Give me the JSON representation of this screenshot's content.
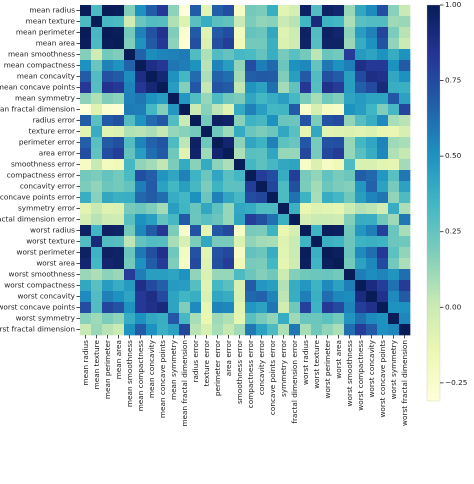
{
  "chart_data": {
    "type": "heatmap",
    "title": "",
    "xlabel": "",
    "ylabel": "",
    "labels": [
      "mean radius",
      "mean texture",
      "mean perimeter",
      "mean area",
      "mean smoothness",
      "mean compactness",
      "mean concavity",
      "mean concave points",
      "mean symmetry",
      "mean fractal dimension",
      "radius error",
      "texture error",
      "perimeter error",
      "area error",
      "smoothness error",
      "compactness error",
      "concavity error",
      "concave points error",
      "symmetry error",
      "fractal dimension error",
      "worst radius",
      "worst texture",
      "worst perimeter",
      "worst area",
      "worst smoothness",
      "worst compactness",
      "worst concavity",
      "worst concave points",
      "worst symmetry",
      "worst fractal dimension"
    ],
    "matrix": [
      [
        1.0,
        0.32,
        1.0,
        0.99,
        0.17,
        0.51,
        0.68,
        0.82,
        0.15,
        -0.31,
        0.68,
        -0.1,
        0.67,
        0.74,
        -0.22,
        0.21,
        0.19,
        0.38,
        -0.1,
        -0.04,
        0.97,
        0.3,
        0.97,
        0.94,
        0.12,
        0.41,
        0.53,
        0.74,
        0.16,
        0.01
      ],
      [
        0.32,
        1.0,
        0.33,
        0.32,
        -0.02,
        0.24,
        0.3,
        0.29,
        0.07,
        -0.08,
        0.28,
        0.39,
        0.28,
        0.26,
        0.01,
        0.19,
        0.14,
        0.16,
        0.01,
        0.05,
        0.35,
        0.91,
        0.36,
        0.34,
        0.08,
        0.28,
        0.3,
        0.3,
        0.11,
        0.12
      ],
      [
        1.0,
        0.33,
        1.0,
        0.99,
        0.21,
        0.56,
        0.72,
        0.85,
        0.18,
        -0.26,
        0.69,
        -0.09,
        0.69,
        0.74,
        -0.2,
        0.25,
        0.23,
        0.41,
        -0.08,
        -0.01,
        0.97,
        0.3,
        0.97,
        0.94,
        0.15,
        0.46,
        0.56,
        0.77,
        0.19,
        0.05
      ],
      [
        0.99,
        0.32,
        0.99,
        1.0,
        0.18,
        0.5,
        0.69,
        0.82,
        0.15,
        -0.28,
        0.73,
        -0.07,
        0.73,
        0.8,
        -0.17,
        0.21,
        0.21,
        0.37,
        -0.07,
        -0.02,
        0.96,
        0.29,
        0.96,
        0.96,
        0.12,
        0.39,
        0.51,
        0.72,
        0.14,
        0.0
      ],
      [
        0.17,
        -0.02,
        0.21,
        0.18,
        1.0,
        0.66,
        0.52,
        0.55,
        0.56,
        0.58,
        0.3,
        0.07,
        0.3,
        0.25,
        0.33,
        0.32,
        0.25,
        0.38,
        0.2,
        0.28,
        0.21,
        0.04,
        0.24,
        0.21,
        0.81,
        0.47,
        0.43,
        0.5,
        0.39,
        0.5
      ],
      [
        0.51,
        0.24,
        0.56,
        0.5,
        0.66,
        1.0,
        0.88,
        0.83,
        0.6,
        0.57,
        0.5,
        0.05,
        0.55,
        0.46,
        0.14,
        0.74,
        0.57,
        0.64,
        0.23,
        0.51,
        0.54,
        0.25,
        0.59,
        0.51,
        0.57,
        0.87,
        0.82,
        0.82,
        0.51,
        0.69
      ],
      [
        0.68,
        0.3,
        0.72,
        0.69,
        0.52,
        0.88,
        1.0,
        0.92,
        0.5,
        0.34,
        0.63,
        0.08,
        0.66,
        0.62,
        0.1,
        0.67,
        0.69,
        0.68,
        0.18,
        0.45,
        0.69,
        0.3,
        0.73,
        0.68,
        0.45,
        0.75,
        0.88,
        0.86,
        0.41,
        0.51
      ],
      [
        0.82,
        0.29,
        0.85,
        0.82,
        0.55,
        0.83,
        0.92,
        1.0,
        0.46,
        0.17,
        0.7,
        0.02,
        0.71,
        0.69,
        0.03,
        0.49,
        0.44,
        0.62,
        0.1,
        0.26,
        0.83,
        0.29,
        0.86,
        0.81,
        0.45,
        0.67,
        0.75,
        0.91,
        0.38,
        0.37
      ],
      [
        0.15,
        0.07,
        0.18,
        0.15,
        0.56,
        0.6,
        0.5,
        0.46,
        1.0,
        0.48,
        0.3,
        0.13,
        0.31,
        0.22,
        0.19,
        0.42,
        0.34,
        0.39,
        0.45,
        0.33,
        0.19,
        0.09,
        0.22,
        0.18,
        0.43,
        0.47,
        0.43,
        0.43,
        0.7,
        0.44
      ],
      [
        -0.31,
        -0.08,
        -0.26,
        -0.28,
        0.58,
        0.57,
        0.34,
        0.17,
        0.48,
        1.0,
        0.0,
        0.16,
        0.04,
        -0.09,
        0.4,
        0.56,
        0.45,
        0.34,
        0.35,
        0.69,
        -0.25,
        -0.05,
        -0.21,
        -0.23,
        0.5,
        0.46,
        0.35,
        0.18,
        0.33,
        0.77
      ],
      [
        0.68,
        0.28,
        0.69,
        0.73,
        0.3,
        0.5,
        0.63,
        0.7,
        0.3,
        0.0,
        1.0,
        0.21,
        0.97,
        0.95,
        0.16,
        0.36,
        0.33,
        0.51,
        0.24,
        0.23,
        0.72,
        0.19,
        0.72,
        0.75,
        0.14,
        0.29,
        0.38,
        0.53,
        0.09,
        0.05
      ],
      [
        -0.1,
        0.39,
        -0.09,
        -0.07,
        0.07,
        0.05,
        0.08,
        0.02,
        0.13,
        0.16,
        0.21,
        1.0,
        0.22,
        0.11,
        0.4,
        0.23,
        0.19,
        0.23,
        0.41,
        0.28,
        -0.11,
        0.41,
        -0.1,
        -0.08,
        -0.07,
        -0.09,
        -0.07,
        -0.12,
        -0.13,
        -0.05
      ],
      [
        0.67,
        0.28,
        0.69,
        0.73,
        0.3,
        0.55,
        0.66,
        0.71,
        0.31,
        0.04,
        0.97,
        0.22,
        1.0,
        0.94,
        0.15,
        0.42,
        0.36,
        0.56,
        0.27,
        0.24,
        0.7,
        0.2,
        0.72,
        0.73,
        0.13,
        0.34,
        0.42,
        0.55,
        0.11,
        0.09
      ],
      [
        0.74,
        0.26,
        0.74,
        0.8,
        0.25,
        0.46,
        0.62,
        0.69,
        0.22,
        -0.09,
        0.95,
        0.11,
        0.94,
        1.0,
        0.08,
        0.28,
        0.27,
        0.42,
        0.13,
        0.13,
        0.76,
        0.2,
        0.76,
        0.81,
        0.13,
        0.28,
        0.39,
        0.54,
        0.07,
        0.02
      ],
      [
        -0.22,
        0.01,
        -0.2,
        -0.17,
        0.33,
        0.14,
        0.1,
        0.03,
        0.19,
        0.4,
        0.16,
        0.4,
        0.15,
        0.08,
        1.0,
        0.34,
        0.27,
        0.33,
        0.41,
        0.43,
        -0.23,
        -0.07,
        -0.22,
        -0.18,
        0.31,
        -0.06,
        -0.06,
        -0.1,
        -0.11,
        0.1
      ],
      [
        0.21,
        0.19,
        0.25,
        0.21,
        0.32,
        0.74,
        0.67,
        0.49,
        0.42,
        0.56,
        0.36,
        0.23,
        0.42,
        0.28,
        0.34,
        1.0,
        0.8,
        0.74,
        0.39,
        0.8,
        0.2,
        0.14,
        0.26,
        0.2,
        0.23,
        0.68,
        0.64,
        0.48,
        0.28,
        0.59
      ],
      [
        0.19,
        0.14,
        0.23,
        0.21,
        0.25,
        0.57,
        0.69,
        0.44,
        0.34,
        0.45,
        0.33,
        0.19,
        0.36,
        0.27,
        0.27,
        0.8,
        1.0,
        0.77,
        0.31,
        0.73,
        0.19,
        0.1,
        0.23,
        0.19,
        0.17,
        0.48,
        0.66,
        0.44,
        0.2,
        0.44
      ],
      [
        0.38,
        0.16,
        0.41,
        0.37,
        0.38,
        0.64,
        0.68,
        0.62,
        0.39,
        0.34,
        0.51,
        0.23,
        0.56,
        0.42,
        0.33,
        0.74,
        0.77,
        1.0,
        0.31,
        0.61,
        0.36,
        0.09,
        0.39,
        0.34,
        0.22,
        0.45,
        0.55,
        0.6,
        0.14,
        0.31
      ],
      [
        -0.1,
        0.01,
        -0.08,
        -0.07,
        0.2,
        0.23,
        0.18,
        0.1,
        0.45,
        0.35,
        0.24,
        0.41,
        0.27,
        0.13,
        0.41,
        0.39,
        0.31,
        0.31,
        1.0,
        0.37,
        -0.13,
        -0.08,
        -0.1,
        -0.11,
        -0.01,
        0.06,
        0.04,
        -0.03,
        0.39,
        0.08
      ],
      [
        -0.04,
        0.05,
        -0.01,
        -0.02,
        0.28,
        0.51,
        0.45,
        0.26,
        0.33,
        0.69,
        0.23,
        0.28,
        0.24,
        0.13,
        0.43,
        0.8,
        0.73,
        0.61,
        0.37,
        1.0,
        -0.04,
        -0.0,
        -0.0,
        -0.02,
        0.17,
        0.39,
        0.38,
        0.22,
        0.11,
        0.59
      ],
      [
        0.97,
        0.35,
        0.97,
        0.96,
        0.21,
        0.54,
        0.69,
        0.83,
        0.19,
        -0.25,
        0.72,
        -0.11,
        0.7,
        0.76,
        -0.23,
        0.2,
        0.19,
        0.36,
        -0.13,
        -0.04,
        1.0,
        0.36,
        0.99,
        0.98,
        0.22,
        0.48,
        0.57,
        0.79,
        0.24,
        0.09
      ],
      [
        0.3,
        0.91,
        0.3,
        0.29,
        0.04,
        0.25,
        0.3,
        0.29,
        0.09,
        -0.05,
        0.19,
        0.41,
        0.2,
        0.2,
        -0.07,
        0.14,
        0.1,
        0.09,
        -0.08,
        -0.0,
        0.36,
        1.0,
        0.37,
        0.35,
        0.23,
        0.36,
        0.37,
        0.36,
        0.23,
        0.22
      ],
      [
        0.97,
        0.36,
        0.97,
        0.96,
        0.24,
        0.59,
        0.73,
        0.86,
        0.22,
        -0.21,
        0.72,
        -0.1,
        0.72,
        0.76,
        -0.22,
        0.26,
        0.23,
        0.39,
        -0.1,
        -0.0,
        0.99,
        0.37,
        1.0,
        0.98,
        0.24,
        0.53,
        0.62,
        0.82,
        0.27,
        0.14
      ],
      [
        0.94,
        0.34,
        0.94,
        0.96,
        0.21,
        0.51,
        0.68,
        0.81,
        0.18,
        -0.23,
        0.75,
        -0.08,
        0.73,
        0.81,
        -0.18,
        0.2,
        0.19,
        0.34,
        -0.11,
        -0.02,
        0.98,
        0.35,
        0.98,
        1.0,
        0.21,
        0.44,
        0.54,
        0.75,
        0.21,
        0.08
      ],
      [
        0.12,
        0.08,
        0.15,
        0.12,
        0.81,
        0.57,
        0.45,
        0.45,
        0.43,
        0.5,
        0.14,
        -0.07,
        0.13,
        0.13,
        0.31,
        0.23,
        0.17,
        0.22,
        -0.01,
        0.17,
        0.22,
        0.23,
        0.24,
        0.21,
        1.0,
        0.57,
        0.52,
        0.55,
        0.49,
        0.62
      ],
      [
        0.41,
        0.28,
        0.46,
        0.39,
        0.47,
        0.87,
        0.75,
        0.67,
        0.47,
        0.46,
        0.29,
        -0.09,
        0.34,
        0.28,
        -0.06,
        0.68,
        0.48,
        0.45,
        0.06,
        0.39,
        0.48,
        0.36,
        0.53,
        0.44,
        0.57,
        1.0,
        0.89,
        0.8,
        0.61,
        0.81
      ],
      [
        0.53,
        0.3,
        0.56,
        0.51,
        0.43,
        0.82,
        0.88,
        0.75,
        0.43,
        0.35,
        0.38,
        -0.07,
        0.42,
        0.39,
        -0.06,
        0.64,
        0.66,
        0.55,
        0.04,
        0.38,
        0.57,
        0.37,
        0.62,
        0.54,
        0.52,
        0.89,
        1.0,
        0.86,
        0.53,
        0.69
      ],
      [
        0.74,
        0.3,
        0.77,
        0.72,
        0.5,
        0.82,
        0.86,
        0.91,
        0.43,
        0.18,
        0.53,
        -0.12,
        0.55,
        0.54,
        -0.1,
        0.48,
        0.44,
        0.6,
        -0.03,
        0.22,
        0.79,
        0.36,
        0.82,
        0.75,
        0.55,
        0.8,
        0.86,
        1.0,
        0.5,
        0.51
      ],
      [
        0.16,
        0.11,
        0.19,
        0.14,
        0.39,
        0.51,
        0.41,
        0.38,
        0.7,
        0.33,
        0.09,
        -0.13,
        0.11,
        0.07,
        -0.11,
        0.28,
        0.2,
        0.14,
        0.39,
        0.11,
        0.24,
        0.23,
        0.27,
        0.21,
        0.49,
        0.61,
        0.53,
        0.5,
        1.0,
        0.54
      ],
      [
        0.01,
        0.12,
        0.05,
        0.0,
        0.5,
        0.69,
        0.51,
        0.37,
        0.44,
        0.77,
        0.05,
        -0.05,
        0.09,
        0.02,
        0.1,
        0.59,
        0.44,
        0.31,
        0.08,
        0.59,
        0.09,
        0.22,
        0.14,
        0.08,
        0.62,
        0.81,
        0.69,
        0.51,
        0.54,
        1.0
      ]
    ],
    "vmin": -0.31,
    "vmax": 1.0,
    "colormap": "YlGnBu",
    "colorbar": {
      "ticks": [
        1.0,
        0.75,
        0.5,
        0.25,
        0.0,
        -0.25
      ],
      "tick_labels": [
        "1.00",
        "0.75",
        "0.50",
        "0.25",
        "0.00",
        "−0.25"
      ]
    },
    "grid": false,
    "legend": "none"
  }
}
